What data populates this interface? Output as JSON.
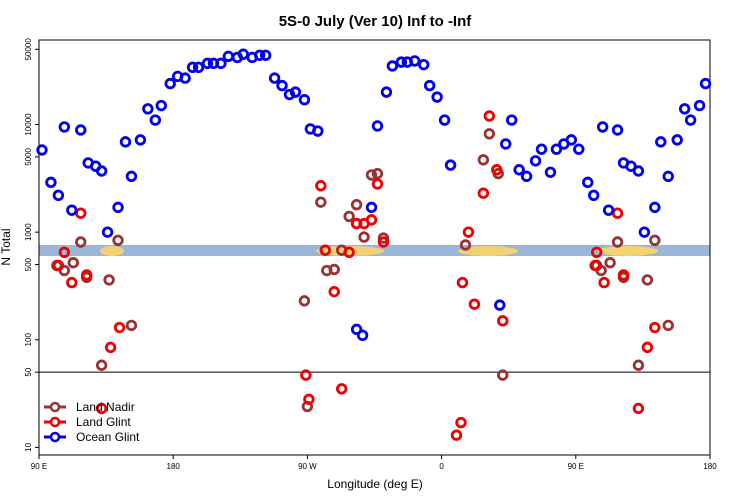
{
  "chart_data": {
    "type": "scatter",
    "title": "5S-0 July (Ver 10)   Inf to -Inf",
    "x_label": "Longitude (deg E)",
    "y_label": "N Total",
    "xlim": [
      90,
      540
    ],
    "xticks": [
      {
        "value": 90,
        "label": "90 E"
      },
      180,
      {
        "value": 270,
        "label": "90 W"
      },
      {
        "value": 360,
        "label": "0"
      },
      {
        "value": 450,
        "label": "90 E"
      },
      {
        "value": 540,
        "label": "180"
      }
    ],
    "ylim": [
      8.5,
      61000
    ],
    "yticks": [
      10,
      50,
      100,
      500,
      1000,
      5000,
      10000,
      50000
    ],
    "log_y": true,
    "hline": 50,
    "legend": "bottom-left",
    "series": [
      {
        "name": "Land Nadir",
        "color": "#993333",
        "x": [
          102,
          107,
          113,
          118,
          122,
          132,
          137,
          143,
          152,
          268,
          270,
          279,
          283,
          288,
          293,
          298,
          303,
          303,
          308,
          313,
          317,
          321,
          376,
          388,
          392,
          398,
          401,
          464,
          467,
          473,
          478,
          482,
          492,
          498,
          503,
          512
        ],
        "values": [
          490,
          440,
          520,
          810,
          380,
          58,
          360,
          840,
          136,
          230,
          24,
          1900,
          440,
          450,
          680,
          1400,
          1800,
          1200,
          900,
          3400,
          3500,
          880,
          760,
          4700,
          8200,
          3500,
          47,
          490,
          440,
          520,
          810,
          380,
          58,
          360,
          840,
          136
        ]
      },
      {
        "name": "Land Glint",
        "color": "#ee0000",
        "x": [
          103,
          107,
          112,
          118,
          122,
          132,
          138,
          144,
          279,
          282,
          288,
          269,
          271,
          293,
          298,
          303,
          308,
          313,
          317,
          321,
          370,
          373,
          374,
          378,
          382,
          388,
          392,
          397,
          401,
          464,
          463,
          469,
          478,
          482,
          492,
          498,
          503
        ],
        "values": [
          490,
          650,
          340,
          1500,
          400,
          23,
          85,
          130,
          2700,
          680,
          280,
          47,
          28,
          35,
          650,
          1200,
          1200,
          1300,
          2800,
          810,
          13,
          17,
          340,
          1000,
          214,
          2300,
          12000,
          3800,
          150,
          650,
          490,
          340,
          1500,
          400,
          23,
          85,
          130
        ]
      },
      {
        "name": "Ocean Glint",
        "color": "#0000ee",
        "x": [
          92,
          98,
          103,
          107,
          112,
          118,
          123,
          128,
          132,
          136,
          143,
          148,
          152,
          158,
          163,
          168,
          172,
          178,
          183,
          188,
          193,
          197,
          203,
          207,
          212,
          217,
          223,
          227,
          233,
          238,
          242,
          248,
          253,
          258,
          262,
          268,
          272,
          277,
          303,
          307,
          313,
          317,
          323,
          327,
          333,
          337,
          342,
          348,
          352,
          357,
          362,
          366,
          399,
          403,
          407,
          412,
          417,
          423,
          427,
          433,
          437,
          442,
          447,
          452,
          458,
          462,
          468,
          472,
          478,
          482,
          487,
          492,
          496,
          503,
          507,
          512,
          518,
          523,
          527,
          533,
          537
        ],
        "values": [
          5800,
          2900,
          2200,
          9500,
          1600,
          8900,
          4400,
          4100,
          3700,
          1000,
          1700,
          6900,
          3300,
          7200,
          14000,
          11000,
          15000,
          24000,
          28000,
          27000,
          34000,
          34000,
          37000,
          37000,
          37000,
          43000,
          42000,
          45000,
          42000,
          44000,
          44000,
          27000,
          23000,
          19000,
          20000,
          17000,
          9100,
          8700,
          125,
          110,
          1700,
          9700,
          20000,
          35000,
          38000,
          38000,
          39000,
          36000,
          23000,
          18000,
          11000,
          4200,
          210,
          6600,
          11000,
          3800,
          3300,
          4600,
          5900,
          3600,
          5900,
          6600,
          7200,
          5900,
          2900,
          2200,
          9500,
          1600,
          8900,
          4400,
          4100,
          3700,
          1000,
          1700,
          6900,
          3300,
          7200,
          14000,
          11000,
          15000,
          24000
        ]
      }
    ]
  }
}
